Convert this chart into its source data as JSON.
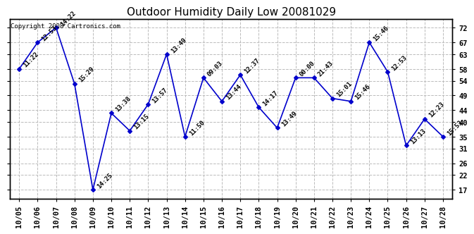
{
  "title": "Outdoor Humidity Daily Low 20081029",
  "copyright": "Copyright 2008 Cartronics.com",
  "x_labels": [
    "10/05",
    "10/06",
    "10/07",
    "10/08",
    "10/09",
    "10/10",
    "10/11",
    "10/12",
    "10/13",
    "10/14",
    "10/15",
    "10/16",
    "10/17",
    "10/18",
    "10/19",
    "10/20",
    "10/21",
    "10/22",
    "10/23",
    "10/24",
    "10/25",
    "10/26",
    "10/27",
    "10/28"
  ],
  "y_values": [
    58,
    67,
    72,
    53,
    17,
    43,
    37,
    46,
    63,
    35,
    55,
    47,
    56,
    45,
    38,
    55,
    55,
    48,
    47,
    67,
    57,
    32,
    41,
    35
  ],
  "point_labels": [
    "11:22",
    "12:53",
    "14:22",
    "15:29",
    "14:25",
    "13:38",
    "13:15",
    "13:57",
    "13:49",
    "11:50",
    "09:03",
    "13:44",
    "12:37",
    "14:17",
    "13:49",
    "00:00",
    "21:43",
    "15:01",
    "15:46",
    "15:46",
    "12:53",
    "13:13",
    "12:23",
    "15:53"
  ],
  "y_ticks": [
    17,
    22,
    26,
    31,
    35,
    40,
    44,
    49,
    54,
    58,
    63,
    67,
    72
  ],
  "ylim": [
    14,
    75
  ],
  "line_color": "#0000cc",
  "marker_color": "#0000cc",
  "grid_color": "#bbbbbb",
  "background_color": "#ffffff",
  "title_fontsize": 11,
  "label_fontsize": 6.5,
  "tick_fontsize": 7.5,
  "copyright_fontsize": 6.5
}
